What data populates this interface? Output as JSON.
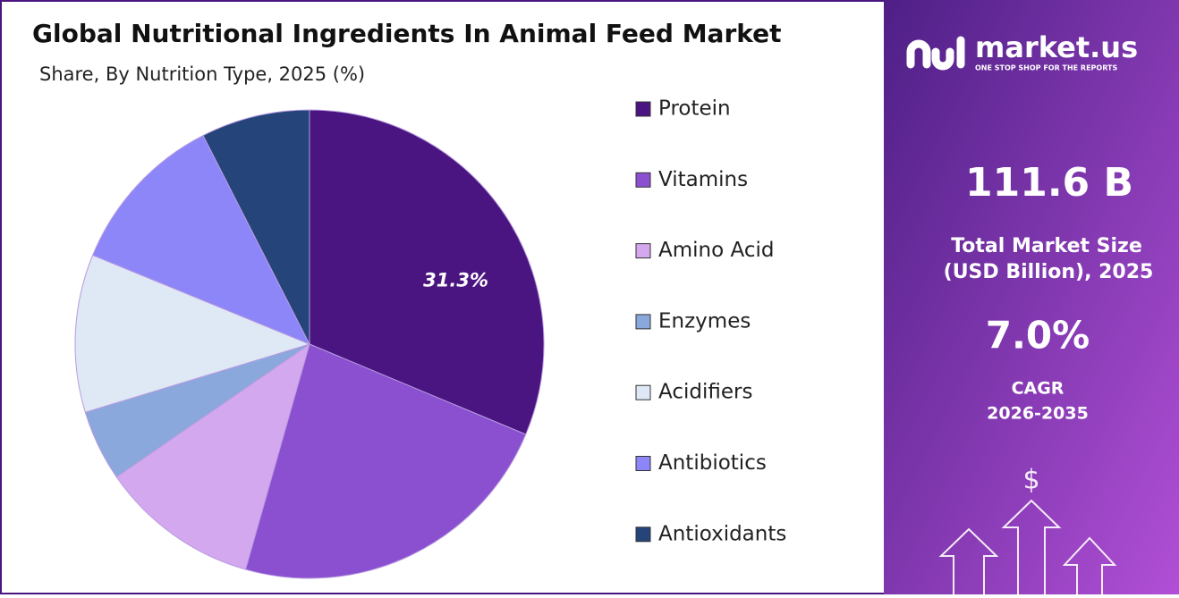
{
  "chart_data": {
    "type": "pie",
    "title": "Global Nutritional Ingredients In Animal Feed Market",
    "subtitle": "Share, By Nutrition Type, 2025 (%)",
    "categories": [
      "Protein",
      "Vitamins",
      "Amino Acid",
      "Enzymes",
      "Acidifiers",
      "Antibiotics",
      "Antioxidants"
    ],
    "values": [
      31.3,
      23.1,
      11.0,
      4.9,
      10.9,
      11.3,
      7.5
    ],
    "value_labels": [
      "31.3%",
      null,
      null,
      null,
      null,
      null,
      null
    ],
    "colors": [
      "#4a1580",
      "#8a50cf",
      "#d4a8ee",
      "#8aa8dc",
      "#dfe8f5",
      "#8c86f8",
      "#25447a"
    ],
    "legend": "right"
  },
  "panel": {
    "brand": "market.us",
    "tagline": "ONE STOP SHOP FOR THE REPORTS",
    "market_size": "111.6 B",
    "market_size_label": [
      "Total Market Size",
      "(USD Billion), 2025"
    ],
    "cagr": "7.0%",
    "cagr_label": [
      "CAGR",
      "2026-2035"
    ]
  }
}
